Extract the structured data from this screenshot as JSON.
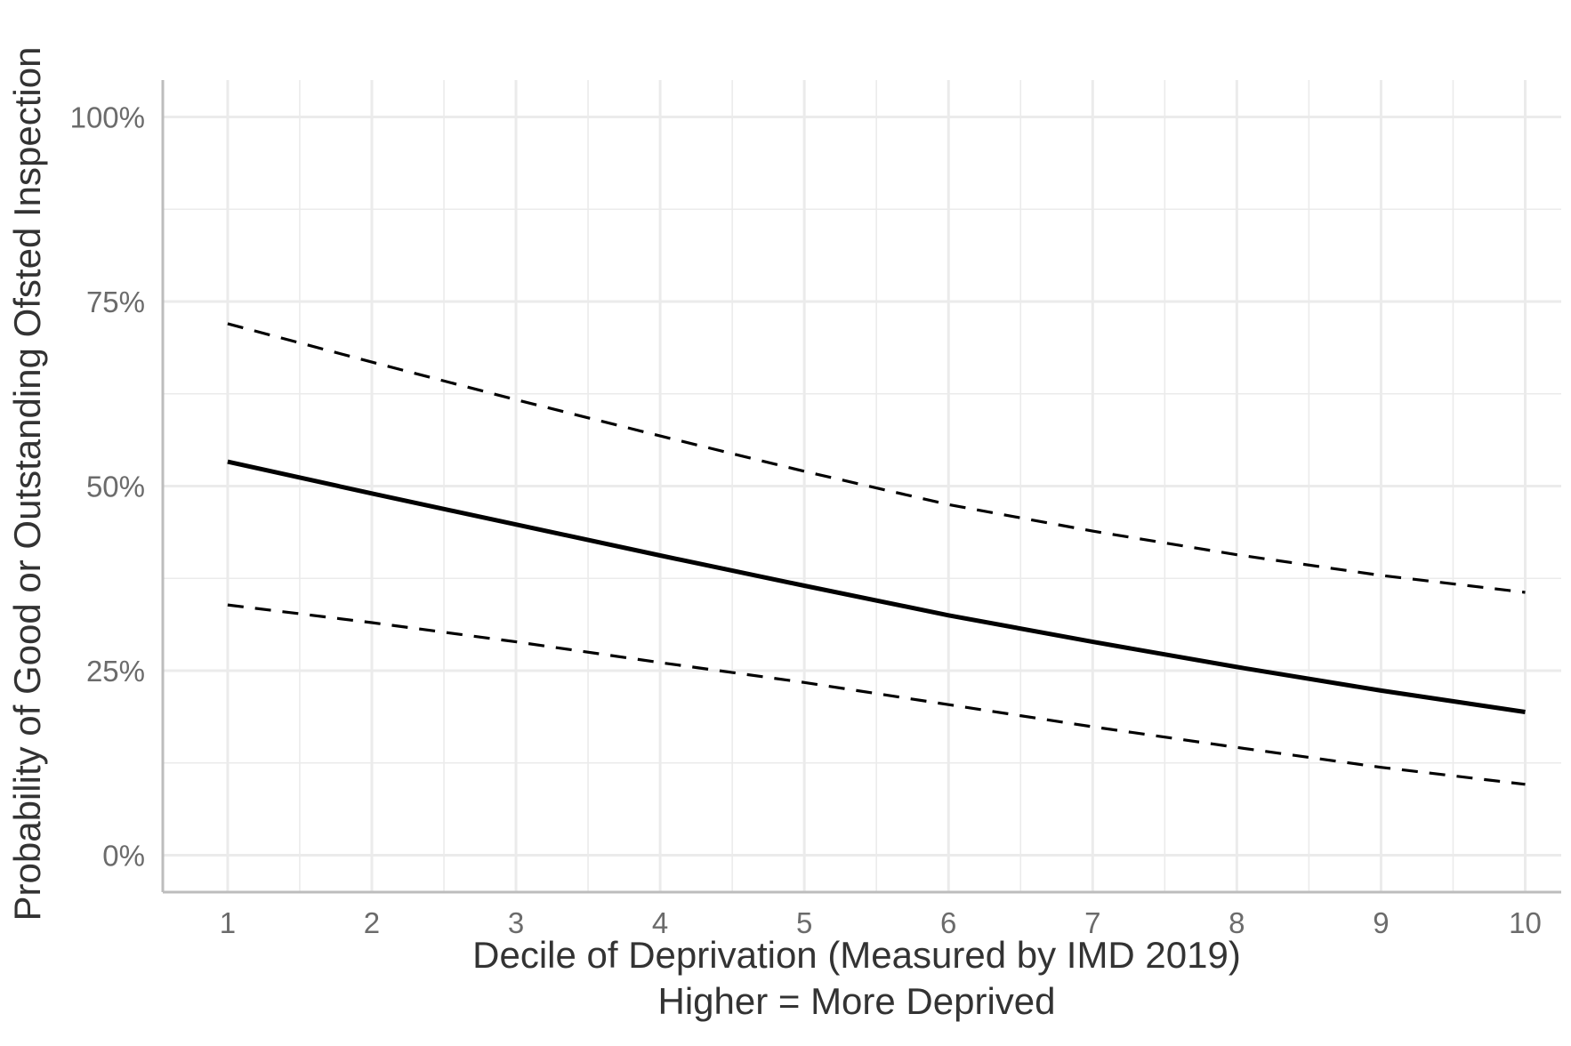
{
  "chart_data": {
    "type": "line",
    "x": [
      1,
      2,
      3,
      4,
      5,
      6,
      7,
      8,
      9,
      10
    ],
    "series": [
      {
        "style": "solid",
        "values": [
          53.3,
          49.0,
          44.8,
          40.6,
          36.5,
          32.5,
          28.9,
          25.5,
          22.3,
          19.4
        ]
      },
      {
        "style": "dashed",
        "values": [
          72.0,
          66.8,
          61.7,
          56.8,
          52.0,
          47.5,
          43.9,
          40.7,
          37.9,
          35.6
        ]
      },
      {
        "style": "dashed",
        "values": [
          33.9,
          31.5,
          28.9,
          26.1,
          23.4,
          20.4,
          17.4,
          14.6,
          11.9,
          9.6
        ]
      }
    ],
    "x_ticks": [
      "1",
      "2",
      "3",
      "4",
      "5",
      "6",
      "7",
      "8",
      "9",
      "10"
    ],
    "y_ticks": [
      {
        "value": 0,
        "label": "0%"
      },
      {
        "value": 25,
        "label": "25%"
      },
      {
        "value": 50,
        "label": "50%"
      },
      {
        "value": 75,
        "label": "75%"
      },
      {
        "value": 100,
        "label": "100%"
      }
    ],
    "xlabel_line1": "Decile of Deprivation (Measured by IMD 2019)",
    "xlabel_line2": "Higher = More Deprived",
    "ylabel": "Probability of Good or Outstanding Ofsted Inspection",
    "xlim": [
      0.55,
      10.25
    ],
    "ylim": [
      -5,
      105
    ],
    "grid": true,
    "colors": {
      "line": "#000000",
      "grid": "#ebebeb",
      "axis": "#bdbdbd",
      "tick_text": "#6b6b6b",
      "title_text": "#333333"
    }
  }
}
